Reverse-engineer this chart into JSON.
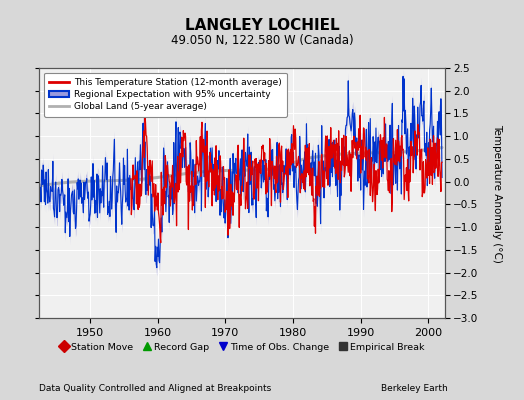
{
  "title": "LANGLEY LOCHIEL",
  "subtitle": "49.050 N, 122.580 W (Canada)",
  "ylabel": "Temperature Anomaly (°C)",
  "xlabel_bottom_left": "Data Quality Controlled and Aligned at Breakpoints",
  "xlabel_bottom_right": "Berkeley Earth",
  "ylim": [
    -3,
    2.5
  ],
  "xlim": [
    1942.5,
    2002.5
  ],
  "yticks": [
    -3,
    -2.5,
    -2,
    -1.5,
    -1,
    -0.5,
    0,
    0.5,
    1,
    1.5,
    2,
    2.5
  ],
  "xticks": [
    1950,
    1960,
    1970,
    1980,
    1990,
    2000
  ],
  "bg_color": "#d8d8d8",
  "plot_bg_color": "#f0f0f0",
  "grid_color": "#ffffff",
  "red_color": "#dd0000",
  "blue_color": "#0033cc",
  "blue_fill_color": "#9999dd",
  "gray_color": "#b0b0b0",
  "legend1_labels": [
    "This Temperature Station (12-month average)",
    "Regional Expectation with 95% uncertainty",
    "Global Land (5-year average)"
  ],
  "legend2_labels": [
    "Station Move",
    "Record Gap",
    "Time of Obs. Change",
    "Empirical Break"
  ],
  "legend2_colors": [
    "#cc0000",
    "#009900",
    "#0000cc",
    "#333333"
  ],
  "legend2_markers": [
    "D",
    "^",
    "v",
    "s"
  ]
}
